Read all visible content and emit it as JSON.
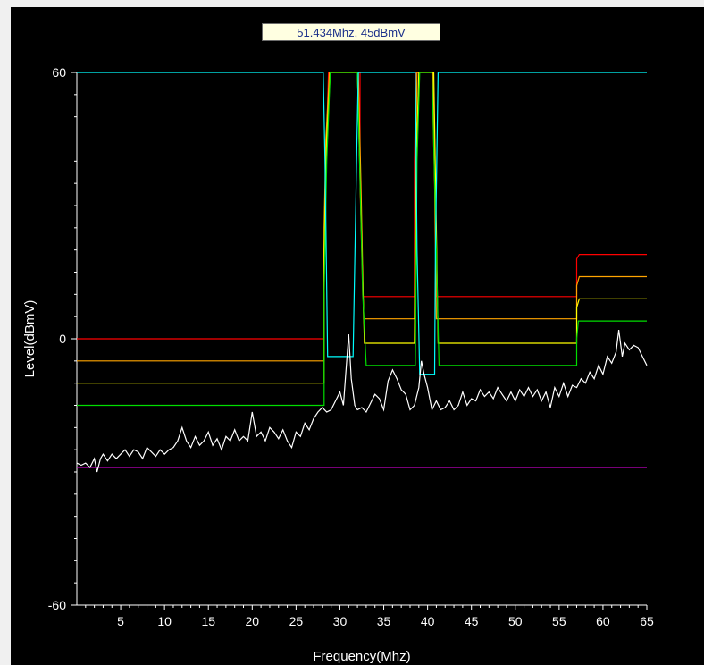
{
  "readout": "51.434Mhz, 45dBmV",
  "chart_data": {
    "type": "line",
    "title": "",
    "xlabel": "Frequency(Mhz)",
    "ylabel": "Level(dBmV)",
    "xlim": [
      0,
      65
    ],
    "ylim": [
      -60,
      60
    ],
    "xticks": [
      5,
      10,
      15,
      20,
      25,
      30,
      35,
      40,
      45,
      50,
      55,
      60,
      65
    ],
    "yticks": [
      -60,
      0,
      60
    ],
    "grid": false,
    "legend": "none",
    "series": [
      {
        "color": "#ff0000",
        "points": [
          [
            0,
            0
          ],
          [
            28.2,
            0
          ],
          [
            28.2,
            20
          ],
          [
            28.4,
            40
          ],
          [
            28.7,
            60
          ],
          [
            32.3,
            60
          ],
          [
            32.3,
            35
          ],
          [
            32.6,
            9.5
          ],
          [
            38.5,
            9.5
          ],
          [
            38.5,
            40
          ],
          [
            38.7,
            60
          ],
          [
            40.5,
            60
          ],
          [
            40.8,
            35
          ],
          [
            41,
            9.5
          ],
          [
            57,
            9.5
          ],
          [
            57,
            18
          ],
          [
            57.3,
            19
          ],
          [
            65,
            19
          ]
        ]
      },
      {
        "color": "#ffa500",
        "points": [
          [
            0,
            -5
          ],
          [
            28.2,
            -5
          ],
          [
            28.2,
            25
          ],
          [
            28.4,
            45
          ],
          [
            28.8,
            60
          ],
          [
            32.1,
            60
          ],
          [
            32.4,
            35
          ],
          [
            32.7,
            4.5
          ],
          [
            38.5,
            4.5
          ],
          [
            38.6,
            35
          ],
          [
            38.8,
            60
          ],
          [
            40.6,
            60
          ],
          [
            40.8,
            35
          ],
          [
            41,
            4.5
          ],
          [
            57,
            4.5
          ],
          [
            57,
            12
          ],
          [
            57.3,
            14
          ],
          [
            65,
            14
          ]
        ]
      },
      {
        "color": "#ffff00",
        "points": [
          [
            0,
            -10
          ],
          [
            28.2,
            -10
          ],
          [
            28.2,
            20
          ],
          [
            28.5,
            45
          ],
          [
            28.9,
            60
          ],
          [
            32,
            60
          ],
          [
            32.5,
            20
          ],
          [
            32.8,
            -1
          ],
          [
            38.5,
            -1
          ],
          [
            38.7,
            40
          ],
          [
            39,
            60
          ],
          [
            40.7,
            60
          ],
          [
            41,
            25
          ],
          [
            41.2,
            -1
          ],
          [
            57,
            -1
          ],
          [
            57,
            7
          ],
          [
            57.3,
            9
          ],
          [
            65,
            9
          ]
        ]
      },
      {
        "color": "#00dd00",
        "points": [
          [
            0,
            -15
          ],
          [
            28.2,
            -15
          ],
          [
            28.2,
            10
          ],
          [
            28.5,
            40
          ],
          [
            28.9,
            60
          ],
          [
            32,
            60
          ],
          [
            32.6,
            10
          ],
          [
            33,
            -6
          ],
          [
            38.6,
            -6
          ],
          [
            38.8,
            40
          ],
          [
            39.1,
            60
          ],
          [
            40.5,
            60
          ],
          [
            41,
            20
          ],
          [
            41.3,
            -6
          ],
          [
            57,
            -6
          ],
          [
            57,
            0
          ],
          [
            57.2,
            4
          ],
          [
            65,
            4
          ]
        ]
      },
      {
        "color": "#00ffff",
        "points": [
          [
            0,
            60
          ],
          [
            28.1,
            60
          ],
          [
            28.3,
            40
          ],
          [
            28.6,
            -4
          ],
          [
            31.5,
            -4
          ],
          [
            31.9,
            40
          ],
          [
            32.1,
            60
          ],
          [
            38.6,
            60
          ],
          [
            38.8,
            20
          ],
          [
            39.1,
            -8
          ],
          [
            40.8,
            -8
          ],
          [
            40.9,
            20
          ],
          [
            41.2,
            60
          ],
          [
            65,
            60
          ]
        ]
      },
      {
        "color": "#c000c0",
        "points": [
          [
            0,
            -29
          ],
          [
            65,
            -29
          ]
        ]
      },
      {
        "color": "#ffffff",
        "points": [
          [
            0,
            -28
          ],
          [
            0.5,
            -28.5
          ],
          [
            1,
            -28
          ],
          [
            1.5,
            -29
          ],
          [
            2,
            -27
          ],
          [
            2.3,
            -30
          ],
          [
            2.7,
            -27
          ],
          [
            3,
            -26
          ],
          [
            3.5,
            -27.5
          ],
          [
            4,
            -26
          ],
          [
            4.5,
            -27
          ],
          [
            5,
            -26
          ],
          [
            5.5,
            -25
          ],
          [
            6,
            -26.5
          ],
          [
            6.5,
            -25
          ],
          [
            7,
            -25.5
          ],
          [
            7.5,
            -27
          ],
          [
            8,
            -24.5
          ],
          [
            8.5,
            -25.5
          ],
          [
            9,
            -26.5
          ],
          [
            9.5,
            -25
          ],
          [
            10,
            -26
          ],
          [
            10.5,
            -25
          ],
          [
            11,
            -24.5
          ],
          [
            11.5,
            -23
          ],
          [
            12,
            -20
          ],
          [
            12.5,
            -23
          ],
          [
            13,
            -24.5
          ],
          [
            13.5,
            -22
          ],
          [
            14,
            -24
          ],
          [
            14.5,
            -23
          ],
          [
            15,
            -21
          ],
          [
            15.5,
            -24
          ],
          [
            16,
            -22.5
          ],
          [
            16.5,
            -25
          ],
          [
            17,
            -22
          ],
          [
            17.5,
            -23
          ],
          [
            18,
            -20.5
          ],
          [
            18.5,
            -23
          ],
          [
            19,
            -22
          ],
          [
            19.5,
            -23
          ],
          [
            20,
            -16.5
          ],
          [
            20.5,
            -22
          ],
          [
            21,
            -21
          ],
          [
            21.5,
            -23
          ],
          [
            22,
            -20
          ],
          [
            22.5,
            -21
          ],
          [
            23,
            -22.5
          ],
          [
            23.5,
            -20.5
          ],
          [
            24,
            -23
          ],
          [
            24.5,
            -24.5
          ],
          [
            25,
            -21
          ],
          [
            25.5,
            -22
          ],
          [
            26,
            -19
          ],
          [
            26.5,
            -20.5
          ],
          [
            27,
            -18
          ],
          [
            27.5,
            -16.5
          ],
          [
            28,
            -15.5
          ],
          [
            28.5,
            -16.5
          ],
          [
            29,
            -16
          ],
          [
            29.5,
            -14
          ],
          [
            30,
            -12
          ],
          [
            30.4,
            -15
          ],
          [
            30.7,
            -7
          ],
          [
            31,
            1
          ],
          [
            31.3,
            -9
          ],
          [
            31.7,
            -15
          ],
          [
            32,
            -16
          ],
          [
            32.5,
            -15.5
          ],
          [
            33,
            -16.5
          ],
          [
            33.5,
            -14.5
          ],
          [
            34,
            -12.5
          ],
          [
            34.5,
            -13.5
          ],
          [
            35,
            -16
          ],
          [
            35.5,
            -9.5
          ],
          [
            36,
            -7
          ],
          [
            36.5,
            -9
          ],
          [
            37,
            -11.5
          ],
          [
            37.5,
            -12.5
          ],
          [
            38,
            -16
          ],
          [
            38.5,
            -15
          ],
          [
            39,
            -11
          ],
          [
            39.3,
            -5
          ],
          [
            39.6,
            -8
          ],
          [
            40,
            -11
          ],
          [
            40.5,
            -16
          ],
          [
            41,
            -14
          ],
          [
            41.5,
            -16
          ],
          [
            42,
            -15.5
          ],
          [
            42.5,
            -14
          ],
          [
            43,
            -16
          ],
          [
            43.5,
            -15
          ],
          [
            44,
            -12
          ],
          [
            44.5,
            -15
          ],
          [
            45,
            -13.5
          ],
          [
            45.5,
            -14
          ],
          [
            46,
            -11.5
          ],
          [
            46.5,
            -13
          ],
          [
            47,
            -12
          ],
          [
            47.5,
            -13.5
          ],
          [
            48,
            -11
          ],
          [
            48.5,
            -12.5
          ],
          [
            49,
            -14
          ],
          [
            49.5,
            -12
          ],
          [
            50,
            -14
          ],
          [
            50.5,
            -11.5
          ],
          [
            51,
            -13
          ],
          [
            51.5,
            -11
          ],
          [
            52,
            -13
          ],
          [
            52.5,
            -11.5
          ],
          [
            53,
            -14
          ],
          [
            53.5,
            -12
          ],
          [
            54,
            -15.5
          ],
          [
            54.5,
            -11
          ],
          [
            55,
            -13
          ],
          [
            55.5,
            -10
          ],
          [
            56,
            -13
          ],
          [
            56.5,
            -10.5
          ],
          [
            57,
            -11
          ],
          [
            57.5,
            -9
          ],
          [
            58,
            -10
          ],
          [
            58.5,
            -7.5
          ],
          [
            59,
            -9
          ],
          [
            59.5,
            -6
          ],
          [
            60,
            -8
          ],
          [
            60.5,
            -4
          ],
          [
            61,
            -5.5
          ],
          [
            61.5,
            -3
          ],
          [
            61.8,
            2
          ],
          [
            62.2,
            -4
          ],
          [
            62.5,
            -1
          ],
          [
            63,
            -2.5
          ],
          [
            63.5,
            -1.5
          ],
          [
            64,
            -2
          ],
          [
            64.5,
            -4
          ],
          [
            65,
            -6
          ]
        ]
      }
    ]
  }
}
